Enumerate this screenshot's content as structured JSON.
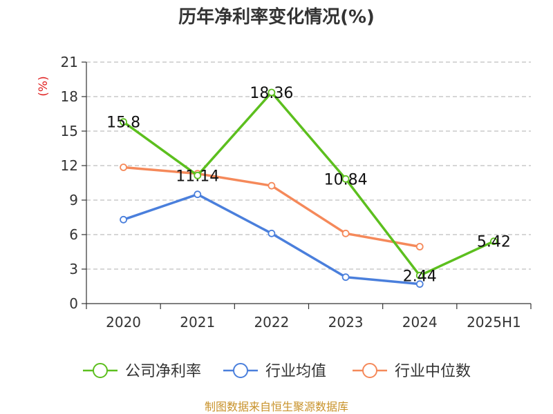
{
  "chart_data": {
    "type": "line",
    "title": "历年净利率变化情况(%)",
    "unit_label": "(%)",
    "categories": [
      "2020",
      "2021",
      "2022",
      "2023",
      "2024",
      "2025H1"
    ],
    "ylim": [
      0,
      21
    ],
    "yticks": [
      0,
      3,
      6,
      9,
      12,
      15,
      18,
      21
    ],
    "grid": true,
    "legend_position": "bottom",
    "series": [
      {
        "name": "公司净利率",
        "color": "#5cbf1e",
        "values": [
          15.8,
          11.14,
          18.36,
          10.84,
          2.44,
          5.42
        ],
        "labels": [
          "15.8",
          "11.14",
          "18.36",
          "10.84",
          "2.44",
          "5.42"
        ]
      },
      {
        "name": "行业均值",
        "color": "#4a7fdc",
        "values": [
          7.3,
          9.5,
          6.1,
          2.3,
          1.7,
          null
        ],
        "labels": null
      },
      {
        "name": "行业中位数",
        "color": "#f5895a",
        "values": [
          11.85,
          11.3,
          10.25,
          6.1,
          4.95,
          null
        ],
        "labels": null
      }
    ],
    "source": "制图数据来自恒生聚源数据库"
  }
}
